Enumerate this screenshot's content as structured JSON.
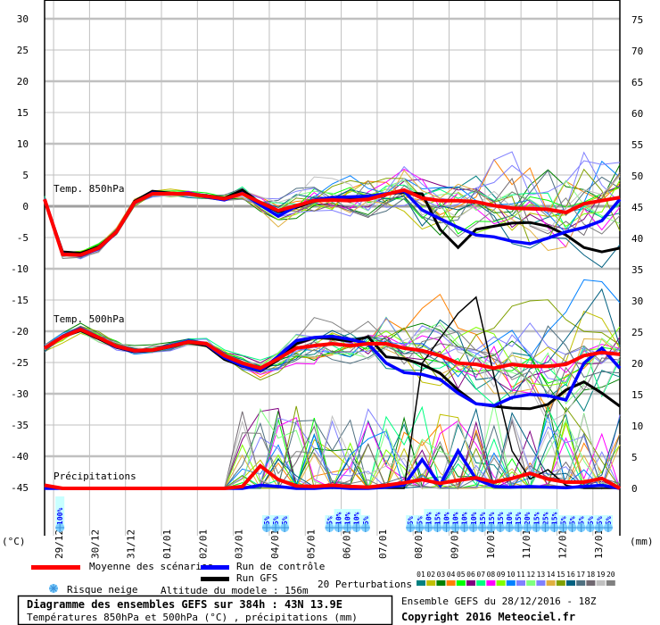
{
  "chart_data": {
    "type": "line",
    "title": "Diagramme des ensembles GEFS sur 384h : 43N 13.9E",
    "subtitle": "Températures 850hPa et 500hPa (°C) , précipitations (mm)",
    "run_info": "Ensemble GEFS du 28/12/2016 - 18Z",
    "copyright": "Copyright 2016 Meteociel.fr",
    "left_axis": {
      "unit_label": "(°C)",
      "range": [
        -45,
        30
      ],
      "ticks": [
        30,
        25,
        20,
        15,
        10,
        5,
        0,
        -5,
        -10,
        -15,
        -20,
        -25,
        -30,
        -35,
        -40,
        -45
      ]
    },
    "right_axis": {
      "unit_label": "(mm)",
      "range": [
        0,
        75
      ],
      "ticks": [
        75,
        70,
        65,
        60,
        55,
        50,
        45,
        40,
        35,
        30,
        25,
        20,
        15,
        10,
        5,
        0
      ]
    },
    "x_hours_range": [
      0,
      384
    ],
    "x_step_hours": 12,
    "date_labels": [
      "29/12",
      "30/12",
      "31/12",
      "01/01",
      "02/01",
      "03/01",
      "04/01",
      "05/01",
      "06/01",
      "07/01",
      "08/01",
      "09/01",
      "10/01",
      "11/01",
      "12/01",
      "13/01"
    ],
    "panel_labels": {
      "t850": "Temp. 850hPa",
      "t500": "Temp. 500hPa",
      "precip": "Précipitations"
    },
    "series": {
      "t850": {
        "mean": [
          1.1,
          -7.7,
          -7.8,
          -6.7,
          -4.1,
          0.6,
          2.0,
          2.0,
          2.0,
          1.6,
          1.2,
          2.0,
          0.6,
          -0.7,
          0.1,
          0.9,
          1.0,
          0.9,
          1.1,
          1.9,
          2.6,
          1.3,
          0.9,
          0.9,
          0.7,
          0.1,
          -0.3,
          -0.4,
          -0.5,
          -1.0,
          0.4,
          0.9,
          1.4
        ],
        "control": [
          1.1,
          -7.6,
          -7.9,
          -6.8,
          -4.2,
          0.5,
          2.1,
          2.0,
          2.1,
          1.5,
          1.0,
          2.1,
          0.2,
          -1.6,
          0.0,
          1.0,
          1.4,
          1.5,
          1.6,
          2.0,
          2.4,
          -0.6,
          -2.0,
          -3.4,
          -4.6,
          -4.9,
          -5.6,
          -6.0,
          -5.1,
          -4.1,
          -3.4,
          -2.3,
          1.1
        ],
        "gfs": [
          1.1,
          -7.3,
          -7.5,
          -6.5,
          -4.0,
          0.8,
          2.4,
          2.1,
          2.0,
          1.7,
          1.3,
          2.6,
          0.5,
          -0.9,
          -0.2,
          0.8,
          1.2,
          1.3,
          1.3,
          2.0,
          2.2,
          2.0,
          -3.7,
          -6.6,
          -3.7,
          -3.2,
          -2.7,
          -2.6,
          -3.2,
          -4.6,
          -6.6,
          -7.3,
          -6.7
        ]
      },
      "t500": {
        "mean": [
          -22.7,
          -20.9,
          -19.7,
          -21.0,
          -22.4,
          -23.1,
          -23.0,
          -22.4,
          -21.7,
          -22.0,
          -23.9,
          -25.1,
          -25.9,
          -24.4,
          -22.7,
          -22.3,
          -22.0,
          -22.3,
          -22.0,
          -22.0,
          -22.7,
          -23.1,
          -23.9,
          -25.1,
          -25.3,
          -25.9,
          -25.3,
          -25.6,
          -25.6,
          -25.3,
          -23.9,
          -23.4,
          -23.7
        ],
        "control": [
          -22.7,
          -20.8,
          -19.6,
          -21.0,
          -22.5,
          -23.2,
          -23.0,
          -22.3,
          -21.6,
          -22.1,
          -24.2,
          -25.5,
          -26.3,
          -24.0,
          -21.5,
          -21.0,
          -20.8,
          -21.3,
          -22.0,
          -25.1,
          -26.6,
          -26.9,
          -27.7,
          -29.9,
          -31.6,
          -31.9,
          -30.6,
          -30.1,
          -30.3,
          -31.0,
          -25.1,
          -22.7,
          -25.9
        ],
        "gfs": [
          -22.7,
          -20.9,
          -19.9,
          -21.2,
          -22.6,
          -23.3,
          -23.1,
          -22.5,
          -21.8,
          -22.3,
          -24.5,
          -25.6,
          -26.4,
          -24.6,
          -22.0,
          -21.0,
          -21.2,
          -21.6,
          -20.9,
          -24.1,
          -24.4,
          -25.3,
          -26.7,
          -29.4,
          -31.6,
          -32.0,
          -32.3,
          -32.4,
          -31.7,
          -29.4,
          -28.1,
          -29.9,
          -32.0
        ]
      },
      "precip": {
        "mean": [
          0.5,
          0,
          0,
          0,
          0,
          0,
          0,
          0,
          0,
          0,
          0,
          0.3,
          3.6,
          1.4,
          0.4,
          0.3,
          0.5,
          0.3,
          0.2,
          0.5,
          0.9,
          1.4,
          0.8,
          1.3,
          1.7,
          1.0,
          1.6,
          2.4,
          1.5,
          1.0,
          1.0,
          1.6,
          0
        ],
        "control": [
          0,
          0,
          0,
          0,
          0,
          0,
          0,
          0,
          0,
          0,
          0,
          0,
          0.5,
          0.3,
          0,
          0,
          0.2,
          0,
          0,
          0.2,
          0.5,
          4.6,
          0.5,
          6.0,
          1.5,
          0.3,
          0.2,
          0.3,
          0.2,
          0.1,
          0.3,
          0.5,
          0
        ],
        "gfs": [
          0,
          0,
          0,
          0,
          0,
          0,
          0,
          0,
          0,
          0,
          0,
          0,
          0.5,
          0.3,
          0,
          0,
          0,
          0,
          0,
          0,
          0,
          20,
          24,
          28,
          30.6,
          18,
          6,
          1.5,
          3,
          0.5,
          0,
          0,
          0
        ]
      }
    },
    "snow_risk": [
      {
        "hour": 12,
        "pct": "100%"
      },
      {
        "hour": 150,
        "pct": "5%"
      },
      {
        "hour": 156,
        "pct": "5%"
      },
      {
        "hour": 162,
        "pct": "5%"
      },
      {
        "hour": 192,
        "pct": "5%"
      },
      {
        "hour": 198,
        "pct": "10%"
      },
      {
        "hour": 204,
        "pct": "10%"
      },
      {
        "hour": 210,
        "pct": "10%"
      },
      {
        "hour": 216,
        "pct": "5%"
      },
      {
        "hour": 246,
        "pct": "5%"
      },
      {
        "hour": 252,
        "pct": "5%"
      },
      {
        "hour": 258,
        "pct": "10%"
      },
      {
        "hour": 264,
        "pct": "15%"
      },
      {
        "hour": 270,
        "pct": "10%"
      },
      {
        "hour": 276,
        "pct": "10%"
      },
      {
        "hour": 282,
        "pct": "10%"
      },
      {
        "hour": 288,
        "pct": "10%"
      },
      {
        "hour": 294,
        "pct": "15%"
      },
      {
        "hour": 300,
        "pct": "15%"
      },
      {
        "hour": 306,
        "pct": "15%"
      },
      {
        "hour": 312,
        "pct": "10%"
      },
      {
        "hour": 318,
        "pct": "15%"
      },
      {
        "hour": 324,
        "pct": "20%"
      },
      {
        "hour": 330,
        "pct": "15%"
      },
      {
        "hour": 336,
        "pct": "25%"
      },
      {
        "hour": 342,
        "pct": "15%"
      },
      {
        "hour": 348,
        "pct": "5%"
      },
      {
        "hour": 354,
        "pct": "5%"
      },
      {
        "hour": 360,
        "pct": "5%"
      },
      {
        "hour": 366,
        "pct": "5%"
      },
      {
        "hour": 372,
        "pct": "5%"
      },
      {
        "hour": 378,
        "pct": "5%"
      }
    ],
    "colors": {
      "mean": "#ff0000",
      "control": "#0000ff",
      "gfs": "#000000",
      "grid": "#c0c0c0"
    },
    "perturbation_colors": [
      "#008080",
      "#c0c000",
      "#008000",
      "#ff8000",
      "#00ff00",
      "#800080",
      "#00ff80",
      "#ff00ff",
      "#80ff00",
      "#0080ff",
      "#8080ff",
      "#80ff80",
      "#8080ff",
      "#e0b040",
      "#80a000",
      "#006080",
      "#507080",
      "#706870",
      "#c0c0c0",
      "#808080"
    ]
  },
  "legend": {
    "mean": "Moyenne des scénarios",
    "control": "Run de contrôle",
    "gfs": "Run GFS",
    "snow": "Risque neige",
    "altitude": "Altitude du modele : 156m",
    "perturbations": "20 Perturbations",
    "perturbation_numbers": [
      "01",
      "02",
      "03",
      "04",
      "05",
      "06",
      "07",
      "08",
      "09",
      "10",
      "11",
      "12",
      "13",
      "14",
      "15",
      "16",
      "17",
      "18",
      "19",
      "20"
    ]
  }
}
